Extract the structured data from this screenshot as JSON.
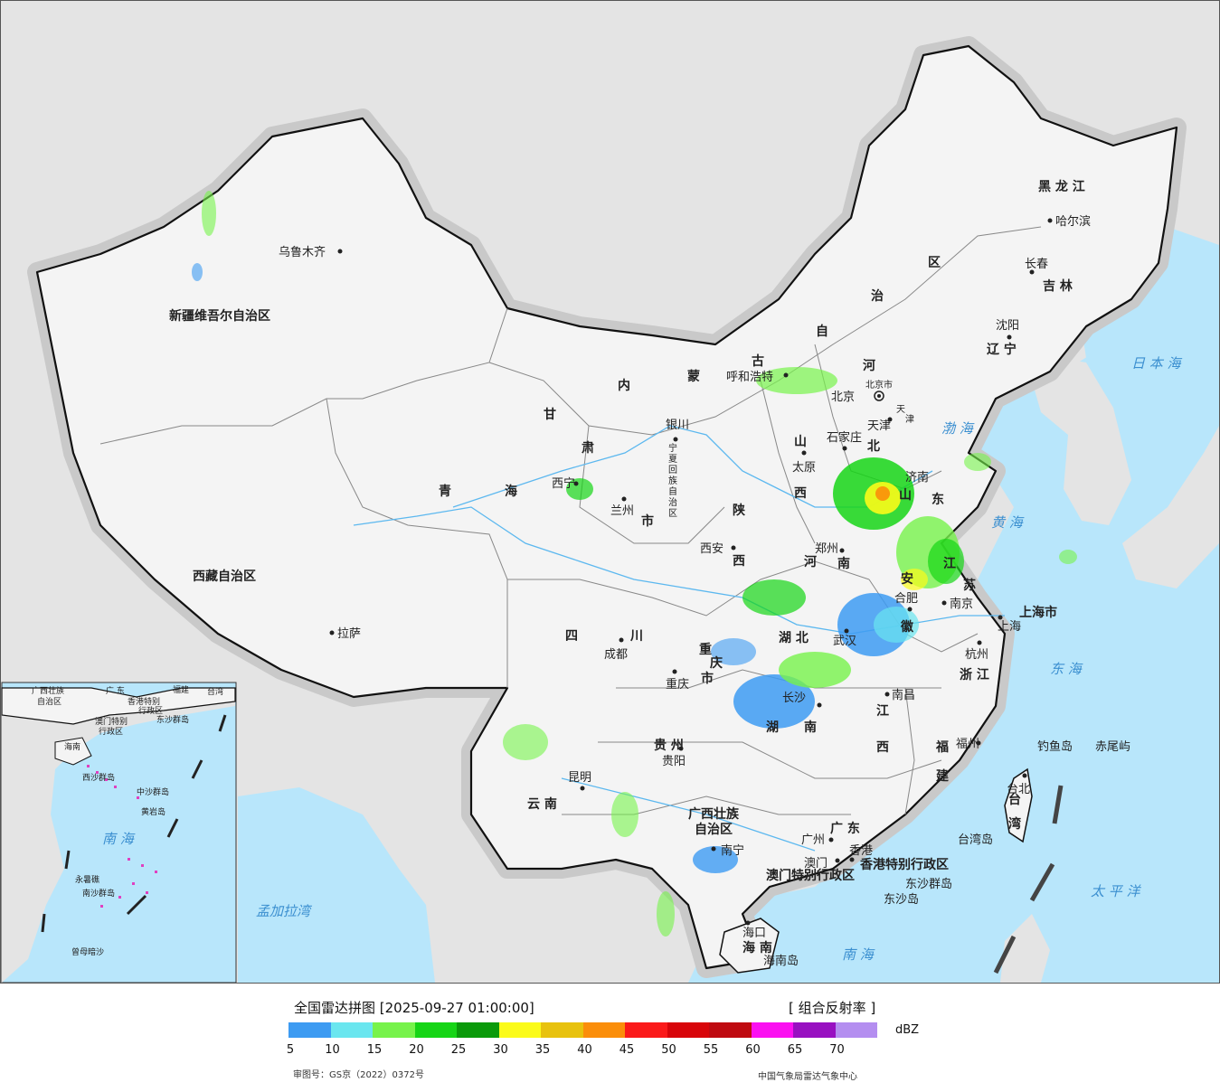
{
  "map": {
    "provinces": [
      {
        "id": "xinjiang",
        "name": "新疆维吾尔自治区"
      },
      {
        "id": "xizang",
        "name": "西藏自治区"
      },
      {
        "id": "qinghai-1",
        "name": "青"
      },
      {
        "id": "qinghai-2",
        "name": "海"
      },
      {
        "id": "gansu-1",
        "name": "甘"
      },
      {
        "id": "gansu-2",
        "name": "肃"
      },
      {
        "id": "neimenggu-1",
        "name": "内"
      },
      {
        "id": "neimenggu-2",
        "name": "蒙"
      },
      {
        "id": "neimenggu-3",
        "name": "古"
      },
      {
        "id": "neimenggu-4",
        "name": "自"
      },
      {
        "id": "neimenggu-5",
        "name": "治"
      },
      {
        "id": "neimenggu-6",
        "name": "区"
      },
      {
        "id": "heilongjiang",
        "name": "黑 龙 江"
      },
      {
        "id": "jilin",
        "name": "吉 林"
      },
      {
        "id": "liaoning",
        "name": "辽 宁"
      },
      {
        "id": "hebei-1",
        "name": "河"
      },
      {
        "id": "hebei-2",
        "name": "北"
      },
      {
        "id": "shanxi-1",
        "name": "山"
      },
      {
        "id": "shanxi-2",
        "name": "西"
      },
      {
        "id": "shaanxi-1",
        "name": "陕"
      },
      {
        "id": "shaanxi-2",
        "name": "西"
      },
      {
        "id": "shandong-1",
        "name": "山"
      },
      {
        "id": "shandong-2",
        "name": "东"
      },
      {
        "id": "henan-1",
        "name": "河"
      },
      {
        "id": "henan-2",
        "name": "南"
      },
      {
        "id": "jiangsu-1",
        "name": "江"
      },
      {
        "id": "jiangsu-2",
        "name": "苏"
      },
      {
        "id": "anhui-1",
        "name": "安"
      },
      {
        "id": "anhui-2",
        "name": "徽"
      },
      {
        "id": "sichuan-1",
        "name": "四"
      },
      {
        "id": "sichuan-2",
        "name": "川"
      },
      {
        "id": "hubei",
        "name": "湖 北"
      },
      {
        "id": "hunan-1",
        "name": "湖"
      },
      {
        "id": "hunan-2",
        "name": "南"
      },
      {
        "id": "jiangxi-1",
        "name": "江"
      },
      {
        "id": "jiangxi-2",
        "name": "西"
      },
      {
        "id": "zhejiang",
        "name": "浙 江"
      },
      {
        "id": "fujian-1",
        "name": "福"
      },
      {
        "id": "fujian-2",
        "name": "建"
      },
      {
        "id": "guizhou",
        "name": "贵 州"
      },
      {
        "id": "yunnan",
        "name": "云 南"
      },
      {
        "id": "guangxi-1",
        "name": "广西壮族"
      },
      {
        "id": "guangxi-2",
        "name": "自治区"
      },
      {
        "id": "guangdong",
        "name": "广 东"
      },
      {
        "id": "hainan",
        "name": "海 南"
      },
      {
        "id": "taiwan-1",
        "name": "台"
      },
      {
        "id": "taiwan-2",
        "name": "湾"
      },
      {
        "id": "ningxia-1",
        "name": "宁"
      },
      {
        "id": "ningxia-2",
        "name": "夏"
      },
      {
        "id": "ningxia-3",
        "name": "回"
      },
      {
        "id": "ningxia-4",
        "name": "族"
      },
      {
        "id": "ningxia-5",
        "name": "自"
      },
      {
        "id": "ningxia-6",
        "name": "治"
      },
      {
        "id": "ningxia-7",
        "name": "区"
      },
      {
        "id": "chongqing-1",
        "name": "重"
      },
      {
        "id": "chongqing-2",
        "name": "庆"
      },
      {
        "id": "chongqing-3",
        "name": "市"
      },
      {
        "id": "shanghai",
        "name": "上海市"
      },
      {
        "id": "beijing",
        "name": "北京市"
      },
      {
        "id": "tianjin-1",
        "name": "天"
      },
      {
        "id": "tianjin-2",
        "name": "津"
      },
      {
        "id": "hk-sar",
        "name": "香港特别行政区"
      },
      {
        "id": "macau-sar",
        "name": "澳门特别行政区"
      },
      {
        "id": "gansu-city-suffix",
        "name": "市"
      }
    ],
    "cities": [
      {
        "id": "urumqi",
        "name": "乌鲁木齐"
      },
      {
        "id": "lhasa",
        "name": "拉萨"
      },
      {
        "id": "xining",
        "name": "西宁"
      },
      {
        "id": "lanzhou",
        "name": "兰州"
      },
      {
        "id": "yinchuan",
        "name": "银川"
      },
      {
        "id": "hohhot",
        "name": "呼和浩特"
      },
      {
        "id": "harbin",
        "name": "哈尔滨"
      },
      {
        "id": "changchun",
        "name": "长春"
      },
      {
        "id": "shenyang",
        "name": "沈阳"
      },
      {
        "id": "beijing-city",
        "name": "北京"
      },
      {
        "id": "tianjin-city",
        "name": "天津"
      },
      {
        "id": "shijiazhuang",
        "name": "石家庄"
      },
      {
        "id": "taiyuan",
        "name": "太原"
      },
      {
        "id": "jinan",
        "name": "济南"
      },
      {
        "id": "zhengzhou",
        "name": "郑州"
      },
      {
        "id": "xian",
        "name": "西安"
      },
      {
        "id": "hefei",
        "name": "合肥"
      },
      {
        "id": "nanjing",
        "name": "南京"
      },
      {
        "id": "shanghai-city",
        "name": "上海"
      },
      {
        "id": "hangzhou",
        "name": "杭州"
      },
      {
        "id": "wuhan",
        "name": "武汉"
      },
      {
        "id": "chengdu",
        "name": "成都"
      },
      {
        "id": "chongqing-city",
        "name": "重庆"
      },
      {
        "id": "changsha",
        "name": "长沙"
      },
      {
        "id": "nanchang",
        "name": "南昌"
      },
      {
        "id": "fuzhou",
        "name": "福州"
      },
      {
        "id": "taipei",
        "name": "台北"
      },
      {
        "id": "guiyang",
        "name": "贵阳"
      },
      {
        "id": "kunming",
        "name": "昆明"
      },
      {
        "id": "nanning",
        "name": "南宁"
      },
      {
        "id": "guangzhou",
        "name": "广州"
      },
      {
        "id": "hongkong",
        "name": "香港"
      },
      {
        "id": "macau",
        "name": "澳门"
      },
      {
        "id": "haikou",
        "name": "海口"
      },
      {
        "id": "hainan-island",
        "name": "海南岛"
      },
      {
        "id": "taiwan-island",
        "name": "台湾岛"
      },
      {
        "id": "diaoyu",
        "name": "钓鱼岛"
      },
      {
        "id": "chiwei",
        "name": "赤尾屿"
      },
      {
        "id": "dongsha-1",
        "name": "东沙群岛"
      },
      {
        "id": "dongsha-2",
        "name": "东沙岛"
      }
    ],
    "seas": [
      {
        "id": "bohai",
        "name": "渤 海"
      },
      {
        "id": "huanghai",
        "name": "黄 海"
      },
      {
        "id": "donghai",
        "name": "东 海"
      },
      {
        "id": "nanhai",
        "name": "南 海"
      },
      {
        "id": "riben-hai",
        "name": "日 本 海"
      },
      {
        "id": "taipingyang",
        "name": "太 平 洋"
      },
      {
        "id": "mengjiala-wan",
        "name": "孟加拉湾"
      }
    ],
    "inset": {
      "labels": [
        {
          "id": "i-guangxi",
          "name": "广西壮族"
        },
        {
          "id": "i-guangxi2",
          "name": "自治区"
        },
        {
          "id": "i-guangdong",
          "name": "广 东"
        },
        {
          "id": "i-fujian",
          "name": "福建"
        },
        {
          "id": "i-taiwan",
          "name": "台湾"
        },
        {
          "id": "i-xianggang",
          "name": "香港特别"
        },
        {
          "id": "i-xianggang2",
          "name": "行政区"
        },
        {
          "id": "i-aomen",
          "name": "澳门特别"
        },
        {
          "id": "i-aomen2",
          "name": "行政区"
        },
        {
          "id": "i-dongsha",
          "name": "东沙群岛"
        },
        {
          "id": "i-hainan",
          "name": "海南"
        },
        {
          "id": "i-xisha",
          "name": "西沙群岛"
        },
        {
          "id": "i-zhongsha",
          "name": "中沙群岛"
        },
        {
          "id": "i-huangyan",
          "name": "黄岩岛"
        },
        {
          "id": "i-nanhai",
          "name": "南 海"
        },
        {
          "id": "i-nansha",
          "name": "南沙群岛"
        },
        {
          "id": "i-yongshu",
          "name": "永暑礁"
        },
        {
          "id": "i-zengmu",
          "name": "曾母暗沙"
        }
      ]
    },
    "colors": {
      "ocean": "#b8e6fb",
      "land-china": "#f5f5f5",
      "land-foreign": "#e4e4e4",
      "border": "#111111",
      "river": "#5cb8ef"
    }
  },
  "legend": {
    "title": "全国雷达拼图 [2025-09-27 01:00:00]",
    "product": "[ 组合反射率 ]",
    "unit": "dBZ",
    "colors": [
      "#3d9bf2",
      "#6ae6ef",
      "#77f34b",
      "#16d516",
      "#0a9a0a",
      "#fbfb1a",
      "#e8c20e",
      "#fb8e0a",
      "#fb1a1a",
      "#d8050a",
      "#bf0a10",
      "#fb10f1",
      "#9810c1",
      "#b48ef0"
    ],
    "ticks": [
      "5",
      "10",
      "15",
      "20",
      "25",
      "30",
      "35",
      "40",
      "45",
      "50",
      "55",
      "60",
      "65",
      "70"
    ],
    "approval": "审图号：GS京（2022）0372号",
    "source": "中国气象局雷达气象中心"
  }
}
